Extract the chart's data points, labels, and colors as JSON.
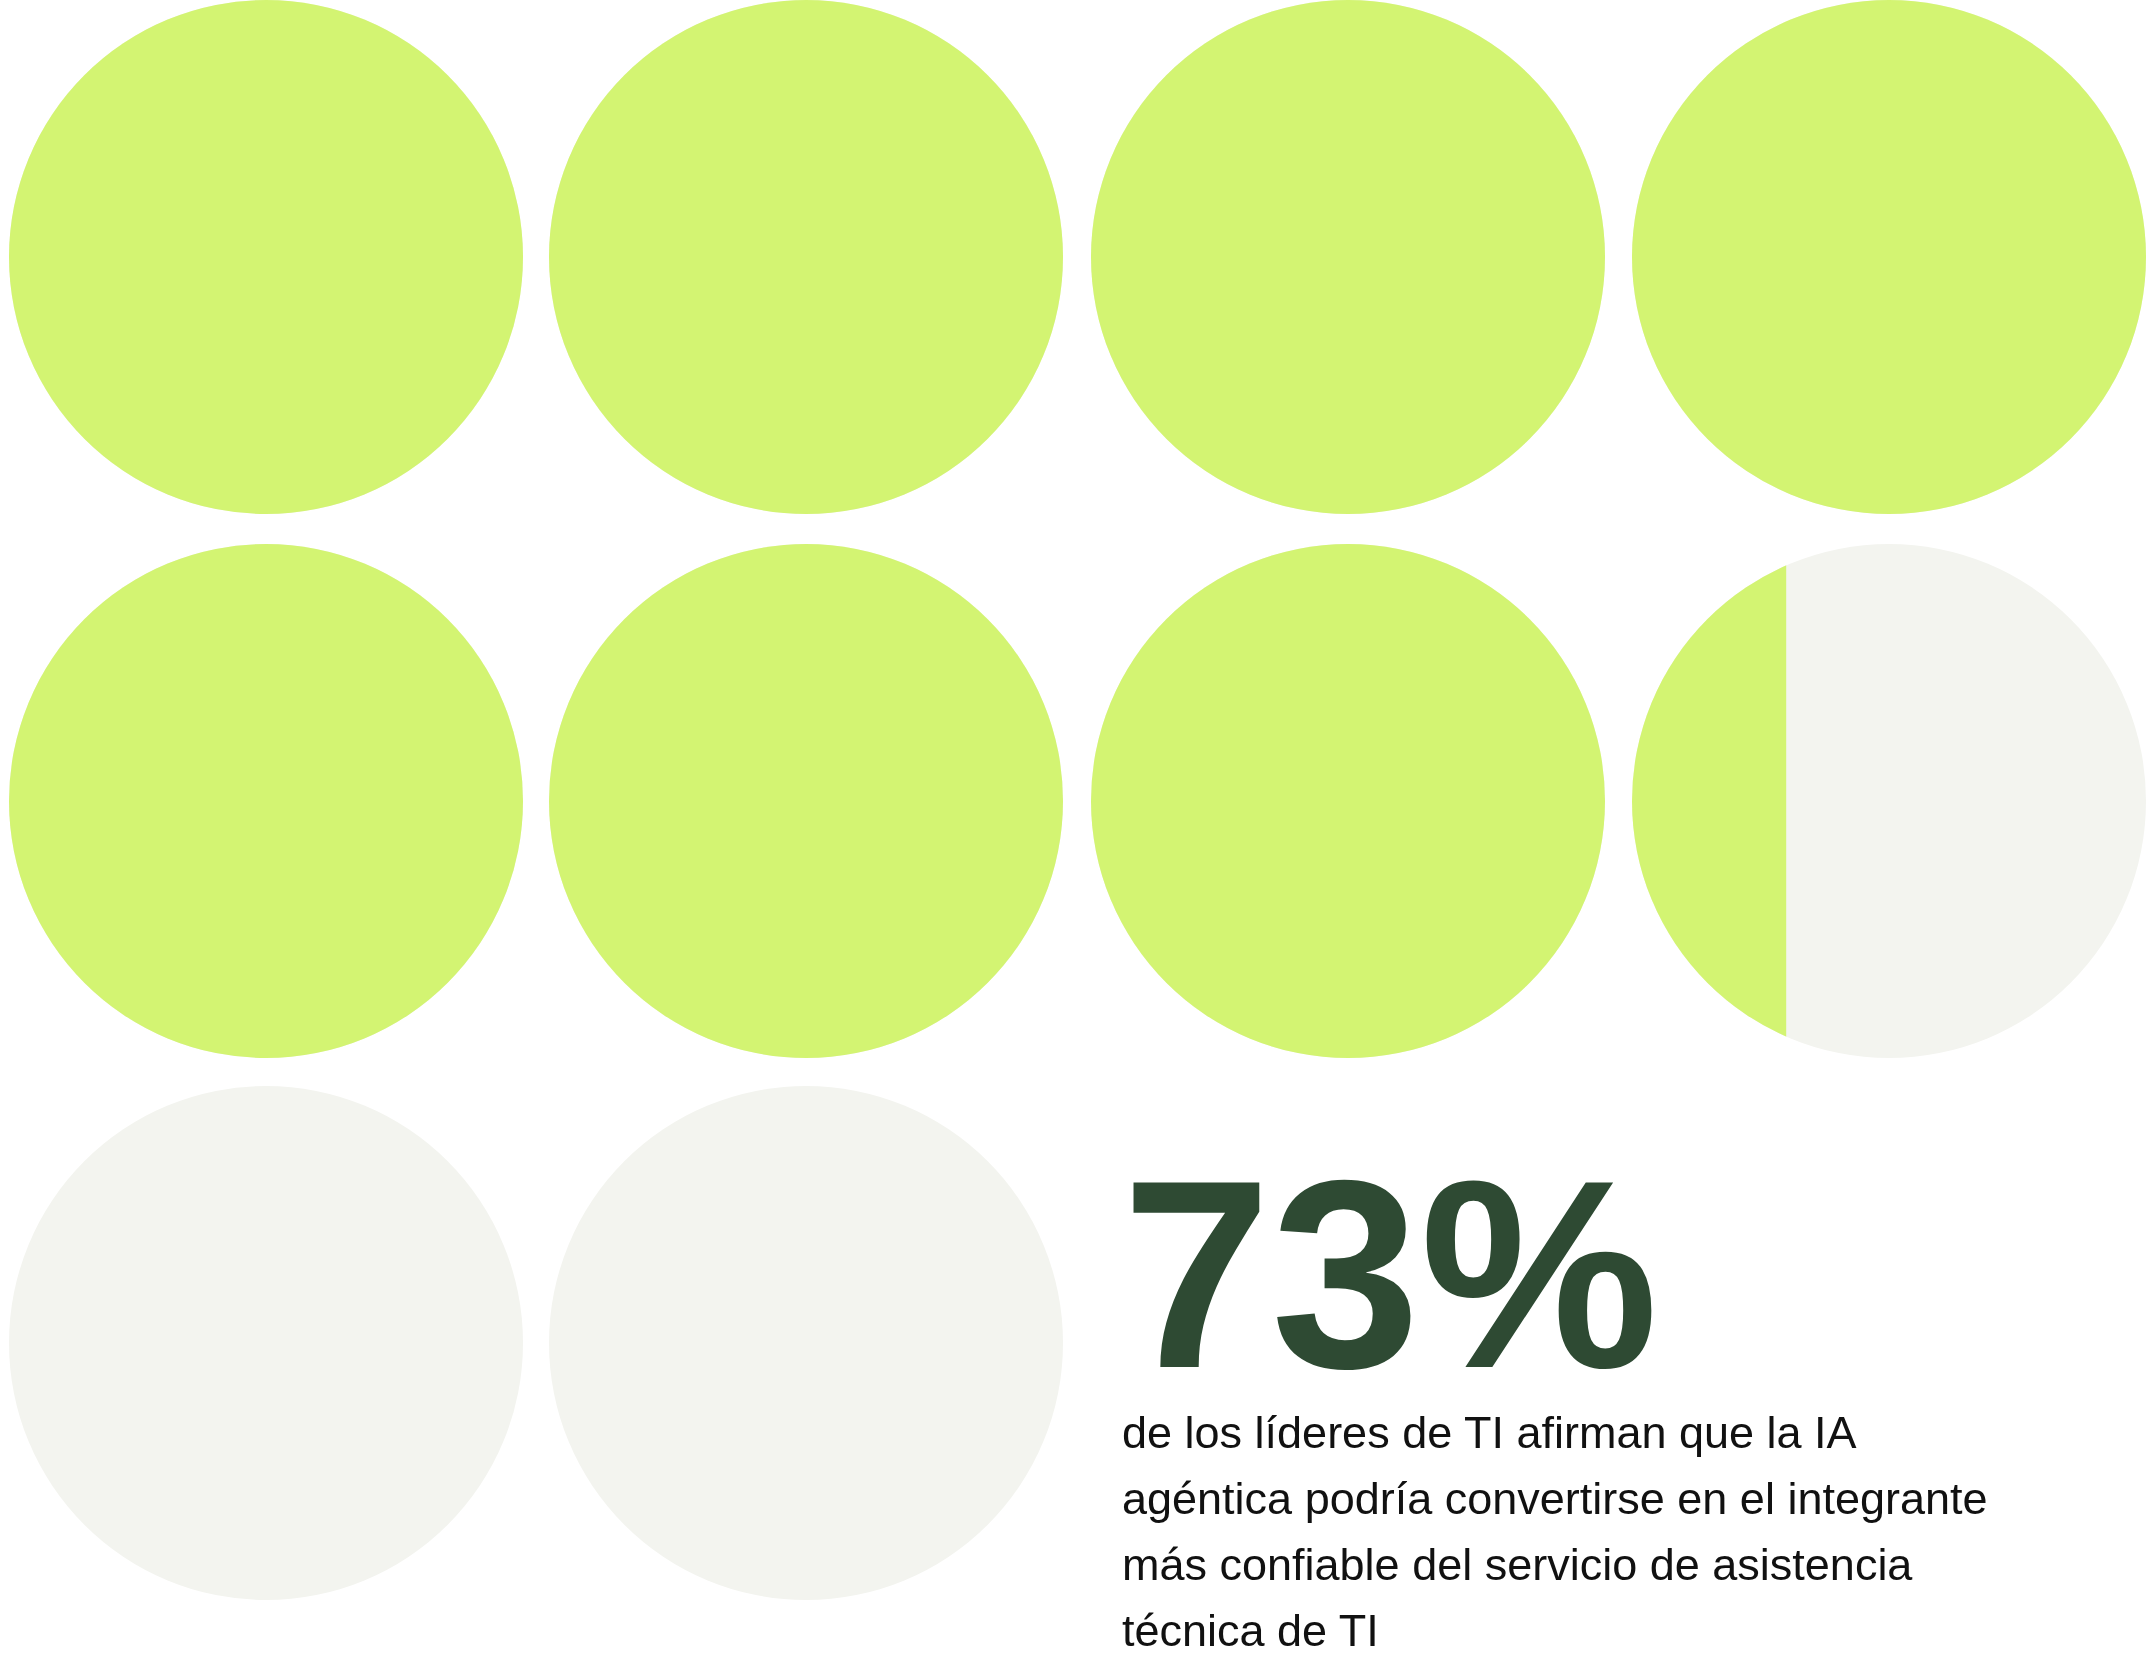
{
  "chart_data": {
    "type": "other",
    "categories": [
      null
    ],
    "values": [
      73
    ],
    "value_labels": [
      "73%"
    ],
    "color": "#d3f472",
    "annotations": [
      "de los líderes de TI afirman que la IA agéntica podría convertirse en el integrante más confiable del servicio de asistencia técnica de TI"
    ]
  }
}
